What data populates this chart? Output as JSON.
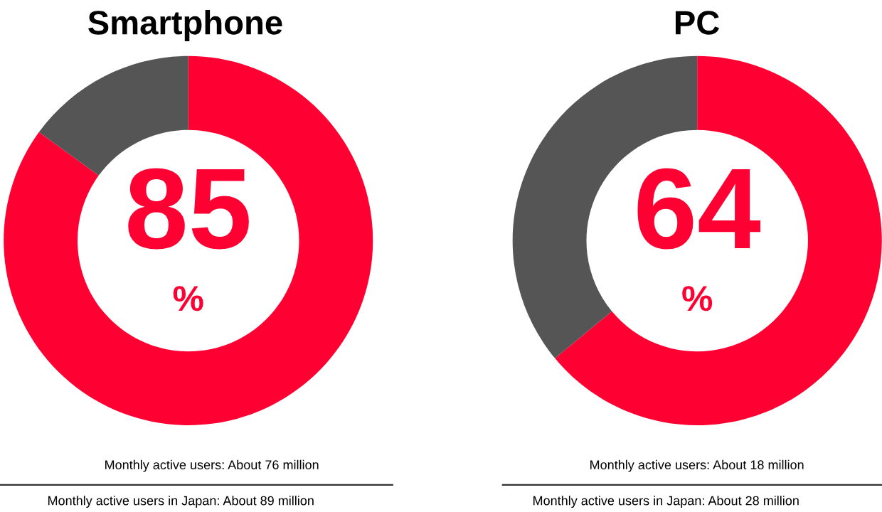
{
  "chart_data": [
    {
      "type": "donut",
      "title": "Smartphone",
      "categories": [
        null,
        null
      ],
      "values": [
        85,
        15
      ],
      "colors": [
        "#ff0033",
        "#555555"
      ],
      "value_labels": [
        "85",
        null
      ],
      "annotations": [
        "%",
        "Monthly active users: About 76 million",
        "Monthly active users in Japan: About 89 million"
      ]
    },
    {
      "type": "donut",
      "title": "PC",
      "categories": [
        null,
        null
      ],
      "values": [
        64,
        36
      ],
      "colors": [
        "#ff0033",
        "#555555"
      ],
      "value_labels": [
        "64",
        null
      ],
      "annotations": [
        "%",
        "Monthly active users: About 18 million",
        "Monthly active users in Japan: About 28 million"
      ]
    }
  ]
}
